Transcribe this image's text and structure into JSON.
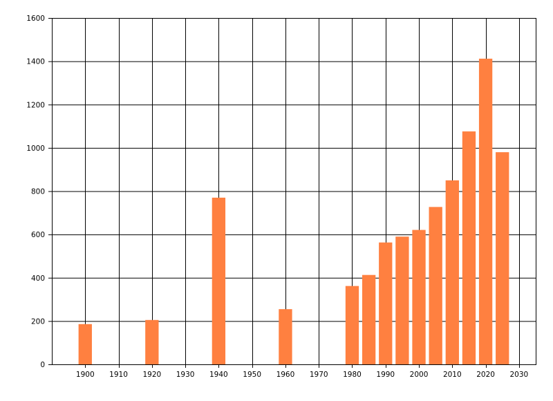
{
  "chart_data": {
    "type": "bar",
    "title": "",
    "xlabel": "",
    "ylabel": "",
    "x": [
      1900,
      1920,
      1940,
      1960,
      1980,
      1985,
      1990,
      1995,
      2000,
      2005,
      2010,
      2015,
      2020,
      2025
    ],
    "values": [
      186,
      205,
      770,
      255,
      362,
      413,
      563,
      590,
      621,
      727,
      850,
      1076,
      1412,
      980
    ],
    "xlim": [
      1890,
      2035
    ],
    "ylim": [
      0,
      1600
    ],
    "x_ticks": [
      1900,
      1910,
      1920,
      1930,
      1940,
      1950,
      1960,
      1970,
      1980,
      1990,
      2000,
      2010,
      2020,
      2030
    ],
    "y_ticks": [
      0,
      200,
      400,
      600,
      800,
      1000,
      1200,
      1400,
      1600
    ],
    "bar_width_years": 4,
    "grid": true,
    "legend": "none",
    "colors": {
      "bar": "#ff8040",
      "grid": "#000000",
      "axis": "#000000",
      "background": "#ffffff"
    }
  }
}
